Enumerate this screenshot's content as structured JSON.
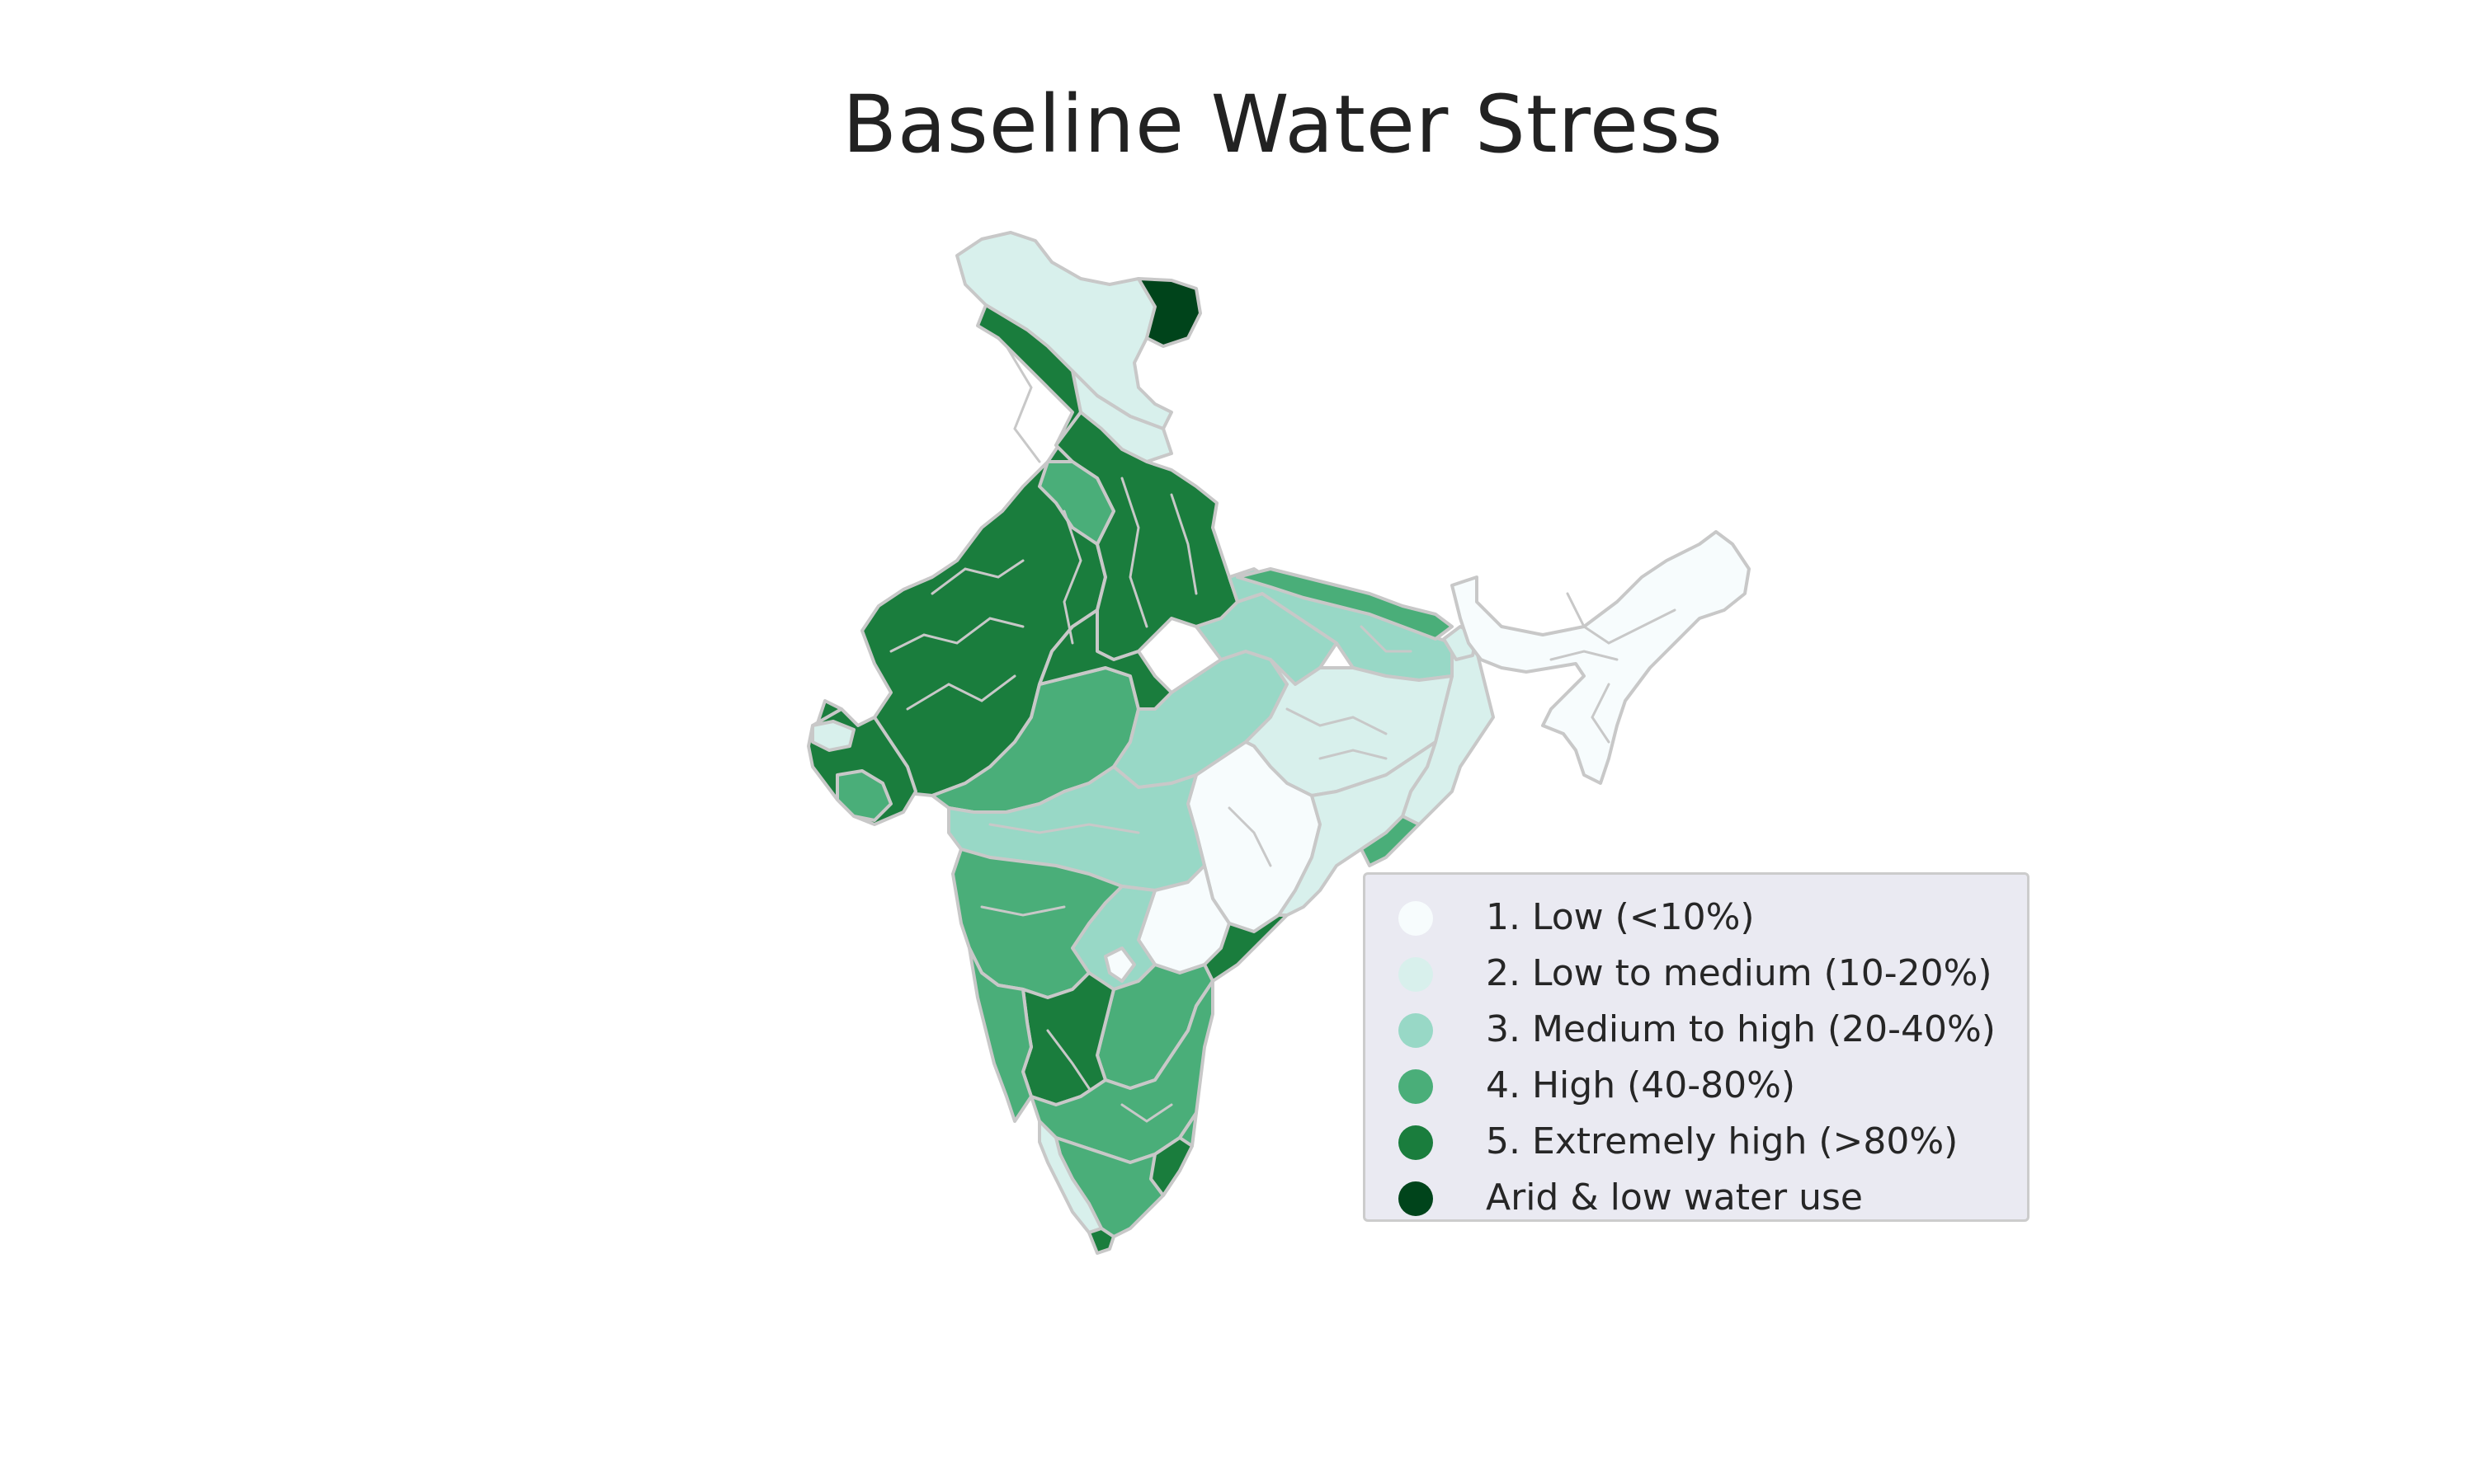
{
  "title": "Baseline Water Stress",
  "colors": {
    "low": "#f7fcfd",
    "low_medium": "#d8f0ec",
    "medium_high": "#98d8c6",
    "high": "#4aae79",
    "extremely_high": "#1a7d3d",
    "arid": "#00441b",
    "border": "#c8c8c8"
  },
  "legend": {
    "items": [
      {
        "label": "1. Low (<10%)",
        "color": "#f7fcfd"
      },
      {
        "label": "2. Low to medium (10-20%)",
        "color": "#d8f0ec"
      },
      {
        "label": "3. Medium to high (20-40%)",
        "color": "#98d8c6"
      },
      {
        "label": "4. High (40-80%)",
        "color": "#4aae79"
      },
      {
        "label": "5. Extremely high (>80%)",
        "color": "#1a7d3d"
      },
      {
        "label": "Arid & low water use",
        "color": "#00441b"
      }
    ]
  }
}
